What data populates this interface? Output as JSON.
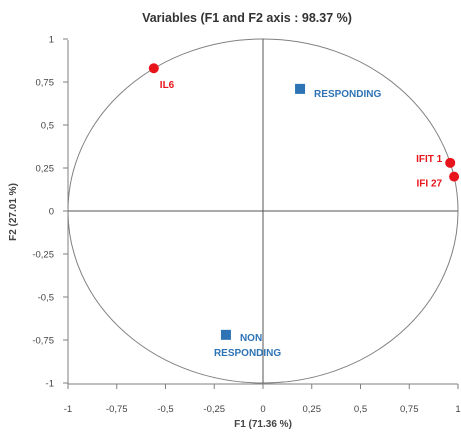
{
  "chart_data": {
    "type": "scatter",
    "title": "Variables (F1 and F2 axis : 98.37 %)",
    "xlabel": "F1 (71.36 %)",
    "ylabel": "F2 (27.01 %)",
    "xlim": [
      -1,
      1
    ],
    "ylim": [
      -1,
      1
    ],
    "x_ticks": [
      "-1",
      "-0,75",
      "-0,5",
      "-0,25",
      "0",
      "0,25",
      "0,5",
      "0,75",
      "1"
    ],
    "y_ticks": [
      "1",
      "0,75",
      "0,5",
      "0,25",
      "0",
      "-0,25",
      "-0,5",
      "-0,75",
      "-1"
    ],
    "correlation_circle": true,
    "series": [
      {
        "marker": "circle",
        "color": "#e8141b",
        "points": [
          {
            "label": "IL6",
            "x": -0.56,
            "y": 0.83
          },
          {
            "label": "IFIT 1",
            "x": 0.96,
            "y": 0.28
          },
          {
            "label": "IFI 27",
            "x": 0.98,
            "y": 0.2
          }
        ]
      },
      {
        "marker": "square",
        "color": "#2e74b5",
        "points": [
          {
            "label": "RESPONDING",
            "x": 0.19,
            "y": 0.71
          },
          {
            "label": "NON RESPONDING",
            "x": -0.19,
            "y": -0.72
          }
        ]
      }
    ]
  }
}
